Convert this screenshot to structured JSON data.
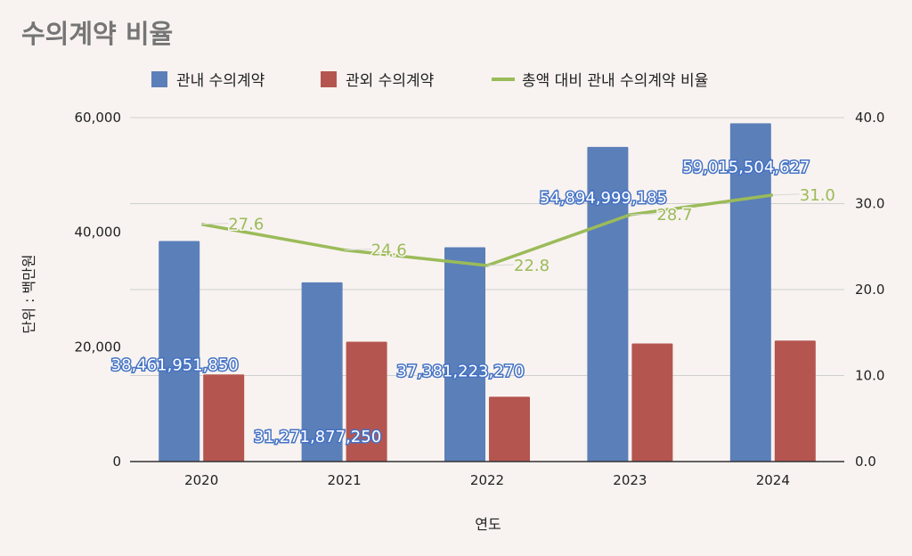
{
  "chart_data": {
    "title": "수의계약 비율",
    "type": "bar",
    "categories": [
      "2020",
      "2021",
      "2022",
      "2023",
      "2024"
    ],
    "series": [
      {
        "name": "관내 수의계약",
        "type": "bar",
        "axis": "left",
        "color": "#5b7fb9",
        "values": [
          38461.95185,
          31271.87725,
          37381.22327,
          54894.999185,
          59015.504627
        ],
        "labels": [
          "38,461,951,850",
          "31,271,877,250",
          "37,381,223,270",
          "54,894,999,185",
          "59,015,504,627"
        ]
      },
      {
        "name": "관외 수의계약",
        "type": "bar",
        "axis": "left",
        "color": "#b55550",
        "values": [
          15200,
          20900,
          11300,
          20600,
          21100
        ]
      },
      {
        "name": "총액 대비 관내 수의계약 비율",
        "type": "line",
        "axis": "right",
        "color": "#9bbb59",
        "values": [
          27.6,
          24.6,
          22.8,
          28.7,
          31.0
        ],
        "labels": [
          "27.6",
          "24.6",
          "22.8",
          "28.7",
          "31.0"
        ]
      }
    ],
    "xlabel": "연도",
    "ylabel": "단위 : 백만원",
    "ylim": [
      0,
      60000
    ],
    "yticks": [
      "0",
      "20,000",
      "40,000",
      "60,000"
    ],
    "y2lim": [
      0,
      40
    ],
    "y2ticks": [
      "0.0",
      "10.0",
      "20.0",
      "30.0",
      "40.0"
    ],
    "legend_position": "top"
  }
}
